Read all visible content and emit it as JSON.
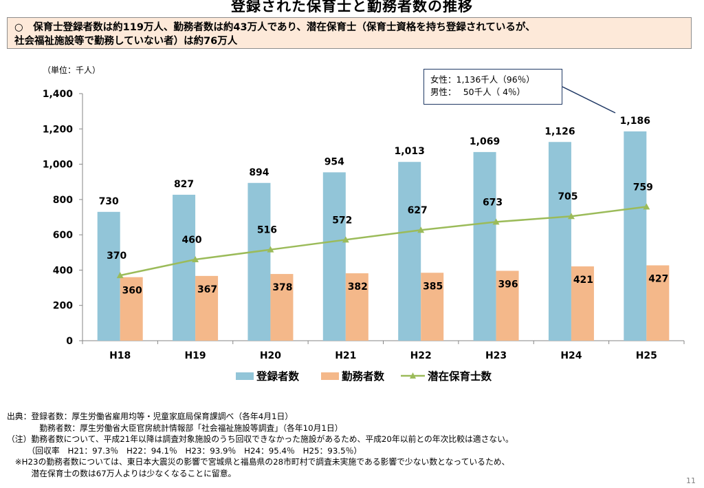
{
  "title": "登録された保育士と勤務者数の推移",
  "summary": {
    "line1": "○　保育士登録者数は約119万人、勤務者数は約43万人であり、潜在保育士（保育士資格を持ち登録されているが、",
    "line2": "社会福祉施設等で勤務していない者）は約76万人"
  },
  "callout": {
    "line1": "女性：1,136千人（96％）",
    "line2": "男性：　 50千人（ 4％）"
  },
  "source": {
    "line1": "出典：登録者数：厚生労働省雇用均等・児童家庭局保育課調べ（各年4月1日）",
    "line2": "　　　　勤務者数：厚生労働省大臣官房統計情報部「社会福祉施設等調査」（各年10月1日）",
    "line3": "（注）勤務者数について、平成21年以降は調査対象施設のうち回収できなかった施設があるため、平成20年以前との年次比較は適さない。",
    "line4": "　　　（回収率　H21：97.3％　H22：94.1％　H23：93.9％　H24：95.4％　H25：93.5％）",
    "line5": "　※H23の勤務者数については、東日本大震災の影響で宮城県と福島県の28市町村で調査未実施である影響で少ない数となっているため、",
    "line6": "　　　潜在保育士の数は67万人よりは少なくなることに留意。"
  },
  "page_number": "11",
  "colors": {
    "registered": "#92c5d8",
    "working": "#f4b88a",
    "latent": "#9bbb59"
  },
  "chart_data": {
    "type": "bar",
    "unit_label": "（単位：千人）",
    "categories": [
      "H18",
      "H19",
      "H20",
      "H21",
      "H22",
      "H23",
      "H24",
      "H25"
    ],
    "series": [
      {
        "name": "登録者数",
        "type": "bar",
        "values": [
          730,
          827,
          894,
          954,
          1013,
          1069,
          1126,
          1186
        ],
        "labels": [
          "730",
          "827",
          "894",
          "954",
          "1,013",
          "1,069",
          "1,126",
          "1,186"
        ]
      },
      {
        "name": "勤務者数",
        "type": "bar",
        "values": [
          360,
          367,
          378,
          382,
          385,
          396,
          421,
          427
        ],
        "labels": [
          "360",
          "367",
          "378",
          "382",
          "385",
          "396",
          "421",
          "427"
        ]
      },
      {
        "name": "潜在保育士数",
        "type": "line",
        "values": [
          370,
          460,
          516,
          572,
          627,
          673,
          705,
          759
        ],
        "labels": [
          "370",
          "460",
          "516",
          "572",
          "627",
          "673",
          "705",
          "759"
        ]
      }
    ],
    "ylim": [
      0,
      1400
    ],
    "yticks": [
      0,
      200,
      400,
      600,
      800,
      1000,
      1200,
      1400
    ],
    "ytick_labels": [
      "0",
      "200",
      "400",
      "600",
      "800",
      "1,000",
      "1,200",
      "1,400"
    ],
    "legend_position": "bottom"
  }
}
